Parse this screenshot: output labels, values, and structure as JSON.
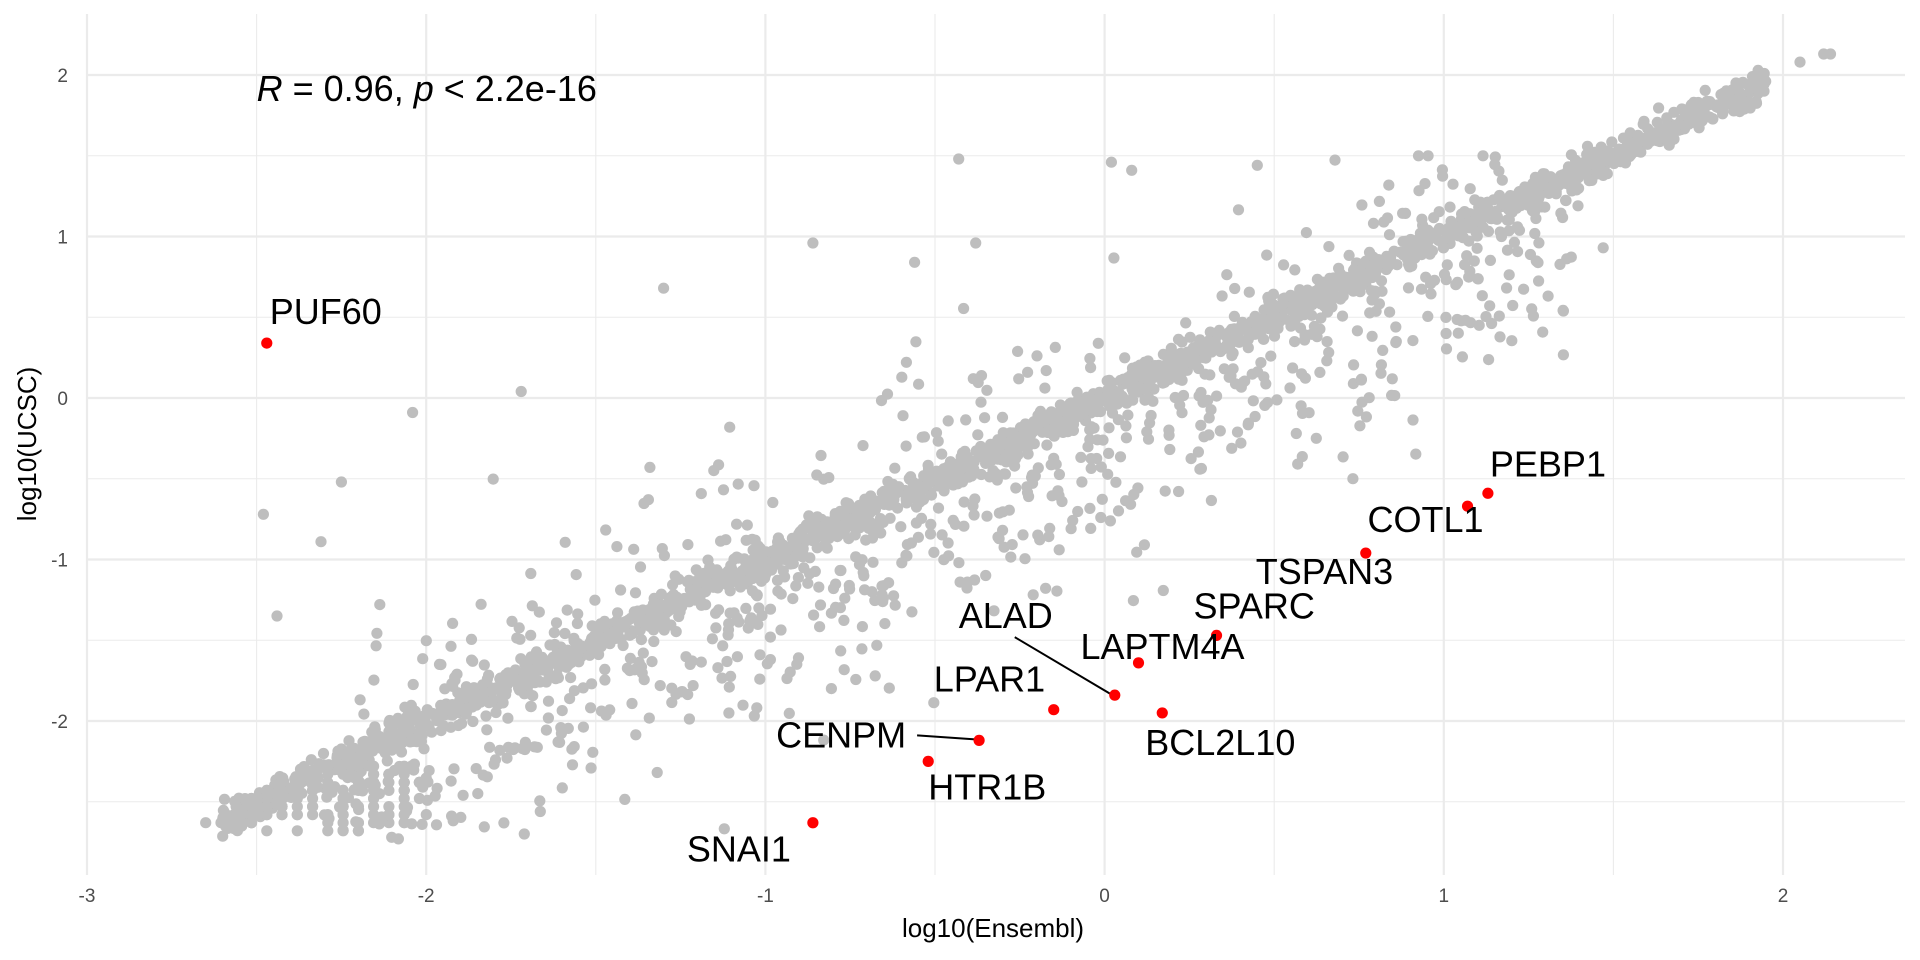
{
  "chart_data": {
    "type": "scatter",
    "title": "",
    "xlabel": "log10(Ensembl)",
    "ylabel": "log10(UCSC)",
    "xlim": [
      -3,
      2.3
    ],
    "ylim": [
      -2.9,
      2.35
    ],
    "x_ticks": [
      -3,
      -2,
      -1,
      0,
      1,
      2
    ],
    "y_ticks": [
      -2,
      -1,
      0,
      1,
      2
    ],
    "x_tick_labels": [
      "-3",
      "-2",
      "-1",
      "0",
      "1",
      "2"
    ],
    "y_tick_labels": [
      "-2",
      "-1",
      "0",
      "1",
      "2"
    ],
    "grid": true,
    "legend": "none",
    "annotation": {
      "r_symbol": "R",
      "r_text": " = 0.96, ",
      "p_symbol": "p",
      "p_text": " < 2.2e-16",
      "x": -2.5,
      "y": 1.92
    },
    "colors": {
      "background_points": "#bebebe",
      "highlight_points": "#ff0000",
      "grid": "#ebebeb",
      "text": "#000000",
      "axis_text": "#4d4d4d"
    },
    "highlighted_points": [
      {
        "label": "PUF60",
        "x": -2.47,
        "y": 0.34
      },
      {
        "label": "PEBP1",
        "x": 1.13,
        "y": -0.59
      },
      {
        "label": "COTL1",
        "x": 1.07,
        "y": -0.67
      },
      {
        "label": "TSPAN3",
        "x": 0.77,
        "y": -0.96
      },
      {
        "label": "SPARC",
        "x": 0.33,
        "y": -1.47
      },
      {
        "label": "LAPTM4A",
        "x": 0.1,
        "y": -1.64
      },
      {
        "label": "ALAD",
        "x": 0.03,
        "y": -1.84
      },
      {
        "label": "BCL2L10",
        "x": 0.17,
        "y": -1.95
      },
      {
        "label": "LPAR1",
        "x": -0.15,
        "y": -1.93
      },
      {
        "label": "CENPM",
        "x": -0.37,
        "y": -2.12
      },
      {
        "label": "HTR1B",
        "x": -0.52,
        "y": -2.25
      },
      {
        "label": "SNAI1",
        "x": -0.86,
        "y": -2.63
      }
    ]
  }
}
